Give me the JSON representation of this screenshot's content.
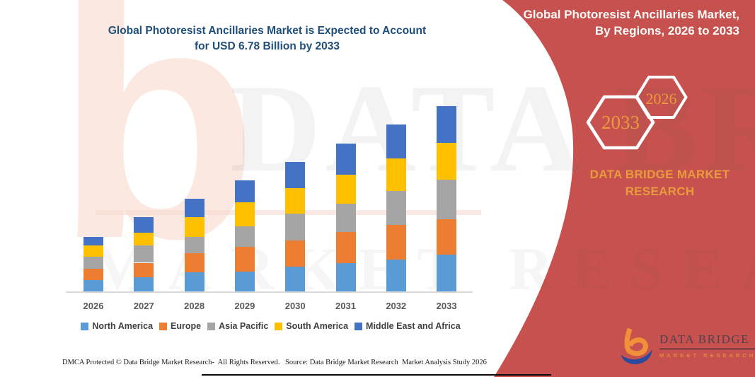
{
  "chart_title": {
    "line1": "Global Photoresist Ancillaries Market is Expected to Account",
    "line2": "for USD 6.78 Billion by 2033"
  },
  "panel": {
    "bg_color": "#c7514e",
    "heading_line1": "Global Photoresist Ancillaries Market,",
    "heading_line2": "By Regions, 2026 to 2033",
    "hexagons": [
      {
        "label": "2033"
      },
      {
        "label": "2026"
      }
    ],
    "brand_text_line1": "DATA BRIDGE MARKET",
    "brand_text_line2": "RESEARCH",
    "logo_name": "DATA BRIDGE",
    "logo_sub": "MARKET RESEARCH"
  },
  "watermark": {
    "letter_b": "b",
    "row1": "DATA BRIDGE",
    "row2": "MARKET RESEARCH"
  },
  "footer": {
    "dmca": "DMCA Protected © Data Bridge Market Research-  All Rights Reserved.",
    "source": "Source: Data Bridge Market Research  Market Analysis Study 2026"
  },
  "chart_data": {
    "type": "bar",
    "stacked": true,
    "unit": "USD Billion",
    "title": "Global Photoresist Ancillaries Market is Expected to Account for USD 6.78 Billion by 2033",
    "categories": [
      "2026",
      "2027",
      "2028",
      "2029",
      "2030",
      "2031",
      "2032",
      "2033"
    ],
    "series": [
      {
        "name": "North America",
        "color": "#5b9bd5",
        "values": [
          0.45,
          0.54,
          0.71,
          0.76,
          0.93,
          1.06,
          1.19,
          1.37
        ]
      },
      {
        "name": "Europe",
        "color": "#ed7d31",
        "values": [
          0.39,
          0.53,
          0.71,
          0.88,
          0.94,
          1.12,
          1.25,
          1.29
        ]
      },
      {
        "name": "Asia Pacific",
        "color": "#a5a5a5",
        "values": [
          0.45,
          0.63,
          0.6,
          0.77,
          0.99,
          1.03,
          1.24,
          1.44
        ]
      },
      {
        "name": "South America",
        "color": "#ffc000",
        "values": [
          0.41,
          0.47,
          0.71,
          0.86,
          0.94,
          1.08,
          1.2,
          1.35
        ]
      },
      {
        "name": "Middle East and Africa",
        "color": "#4472c4",
        "values": [
          0.32,
          0.56,
          0.68,
          0.8,
          0.94,
          1.13,
          1.23,
          1.33
        ]
      }
    ],
    "totals_by_year": [
      2.02,
      2.73,
      3.41,
      4.07,
      4.74,
      5.42,
      6.11,
      6.78
    ],
    "xlabel": "",
    "ylabel": "",
    "y_axis_visible": false,
    "gridlines": false,
    "legend_position": "bottom"
  }
}
